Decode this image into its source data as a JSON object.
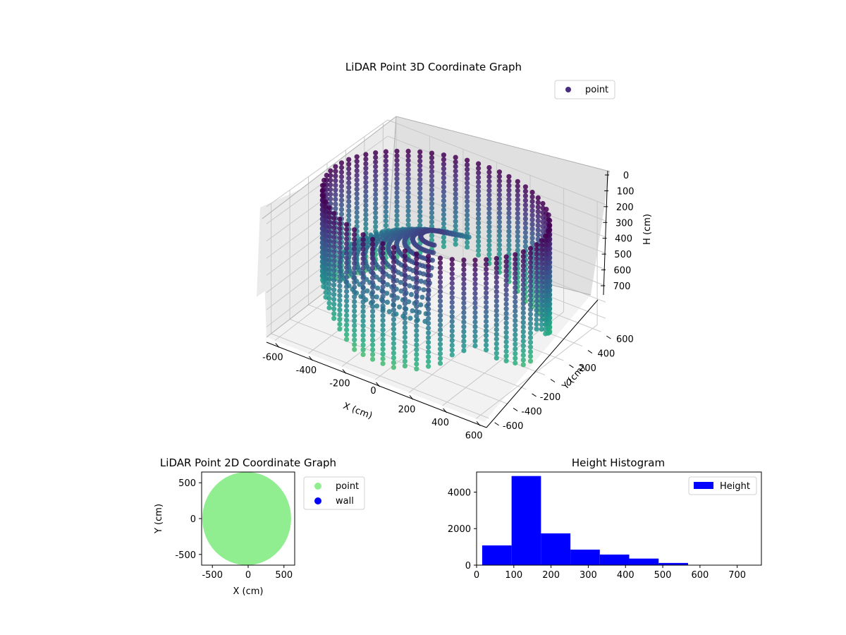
{
  "chart_data": [
    {
      "type": "scatter",
      "projection": "3d",
      "title": "LiDAR Point 3D Coordinate Graph",
      "xlabel": "X (cm)",
      "ylabel": "Y (cm)",
      "zlabel": "H (cm)",
      "xlim": [
        -650,
        650
      ],
      "ylim": [
        -650,
        650
      ],
      "zlim": [
        760,
        0
      ],
      "z_inverted": true,
      "xticks": [
        -600,
        -400,
        -200,
        0,
        200,
        400,
        600
      ],
      "yticks": [
        -600,
        -400,
        -200,
        0,
        200,
        400,
        600
      ],
      "zticks": [
        0,
        100,
        200,
        300,
        400,
        500,
        600,
        700
      ],
      "grid": true,
      "colormap": "viridis",
      "legend": {
        "position": "top-right",
        "entries": [
          {
            "label": "point",
            "color": "#472d7b"
          }
        ]
      },
      "series": [
        {
          "name": "point",
          "shape": "cylindrical wall ring of radius ~600 cm, heights 0-760 cm, color by height",
          "ring_radius_cm": 600,
          "height_range_cm": [
            0,
            760
          ]
        }
      ]
    },
    {
      "type": "scatter",
      "title": "LiDAR Point 2D Coordinate Graph",
      "xlabel": "X (cm)",
      "ylabel": "Y (cm)",
      "xlim": [
        -650,
        650
      ],
      "ylim": [
        -650,
        650
      ],
      "xticks": [
        -500,
        0,
        500
      ],
      "yticks": [
        -500,
        0,
        500
      ],
      "legend": {
        "position": "outside-right",
        "entries": [
          {
            "label": "point",
            "color": "#90ee90"
          },
          {
            "label": "wall",
            "color": "#0000ff"
          }
        ]
      },
      "series": [
        {
          "name": "point",
          "color": "#90ee90",
          "shape": "filled disk radius ~620 cm"
        },
        {
          "name": "wall",
          "color": "#0000ff",
          "values": []
        }
      ]
    },
    {
      "type": "bar",
      "subtype": "histogram",
      "title": "Height Histogram",
      "xlabel": "",
      "ylabel": "",
      "xlim": [
        0,
        765
      ],
      "ylim": [
        0,
        5100
      ],
      "xticks": [
        0,
        100,
        200,
        300,
        400,
        500,
        600,
        700
      ],
      "yticks": [
        0,
        2000,
        4000
      ],
      "color": "#0000ff",
      "legend": {
        "position": "top-right",
        "entries": [
          {
            "label": "Height",
            "color": "#0000ff"
          }
        ]
      },
      "bin_edges": [
        15,
        94,
        173,
        252,
        331,
        410,
        489,
        568,
        647,
        726
      ],
      "counts": [
        1080,
        4880,
        1740,
        850,
        580,
        360,
        120,
        15,
        5
      ]
    }
  ]
}
